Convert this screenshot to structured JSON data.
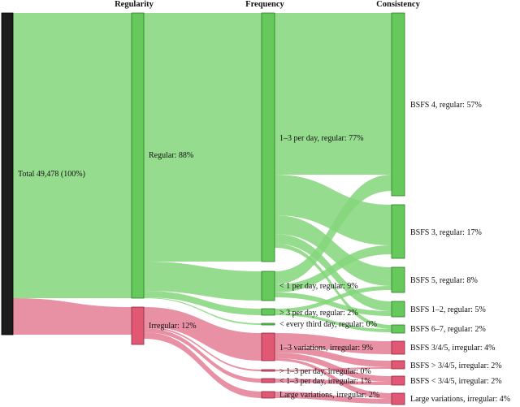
{
  "headers": {
    "regularity": "Regularity",
    "frequency": "Frequency",
    "consistency": "Consistency"
  },
  "nodes": {
    "total": "Total 49,478 (100%)",
    "regular": "Regular: 88%",
    "irregular": "Irregular: 12%",
    "freq_1_3_regular": "1–3 per day, regular: 77%",
    "freq_lt1_regular": "< 1 per day, regular: 9%",
    "freq_gt3_regular": "> 3 per day, regular: 2%",
    "freq_every3_regular": "< every third day, regular: 0%",
    "freq_1_3_var_irregular": "1–3 variations, irregular: 9%",
    "freq_gt1_3_irregular": "> 1–3 per day, irregular: 0%",
    "freq_lt1_3_irregular": "< 1–3 per day, irregular: 1%",
    "freq_large_var_irregular": "Large variations, irregular: 2%",
    "bsfs4_regular": "BSFS 4, regular: 57%",
    "bsfs3_regular": "BSFS 3, regular: 17%",
    "bsfs5_regular": "BSFS 5, regular: 8%",
    "bsfs12_regular": "BSFS 1–2, regular: 5%",
    "bsfs67_regular": "BSFS 6–7, regular: 2%",
    "bsfs345_irregular": "BSFS 3/4/5, irregular: 4%",
    "bsfs_gt345_irregular": "BSFS > 3/4/5, irregular: 2%",
    "bsfs_lt345_irregular": "BSFS < 3/4/5, irregular: 2%",
    "large_var_irregular": "Large variations, irregular: 4%"
  },
  "colors": {
    "regular_flow": "#84d67a",
    "irregular_flow": "#e06b86",
    "regular_node": "#66c95c",
    "irregular_node": "#e05873",
    "total_node": "#1c1c1c"
  }
}
